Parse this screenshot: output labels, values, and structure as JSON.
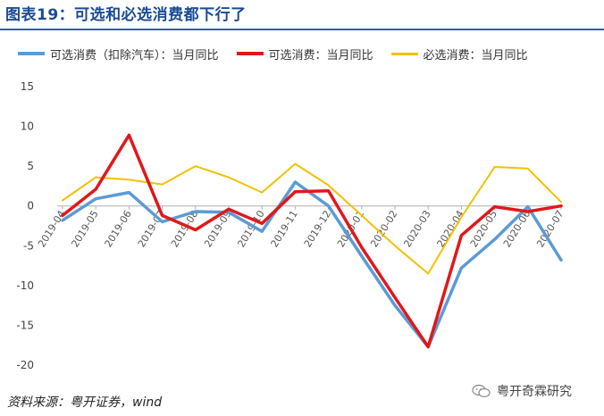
{
  "title": "图表19：可选和必选消费都下行了",
  "source": "资料来源：粤开证券，wind",
  "watermark": "粤开奇霖研究",
  "chart_data": {
    "type": "line",
    "categories": [
      "2019-04",
      "2019-05",
      "2019-06",
      "2019-07",
      "2019-08",
      "2019-09",
      "2019-10",
      "2019-11",
      "2019-12",
      "2020-01",
      "2020-02",
      "2020-03",
      "2020-04",
      "2020-05",
      "2020-06",
      "2020-07"
    ],
    "ylim": [
      -20,
      15
    ],
    "yticks": [
      -20,
      -15,
      -10,
      -5,
      0,
      5,
      10,
      15
    ],
    "grid": false,
    "legend_position": "top",
    "series": [
      {
        "name": "可选消费（扣除汽车）：当月同比",
        "color": "#5b9bd5",
        "width": 3.5,
        "values": [
          -1.8,
          0.9,
          1.7,
          -2.0,
          -0.7,
          -0.8,
          -3.2,
          3.0,
          0.0,
          -6.3,
          -12.5,
          -17.7,
          -7.8,
          -4.2,
          -0.1,
          -6.8
        ]
      },
      {
        "name": "可选消费：当月同比",
        "color": "#e0181b",
        "width": 3.5,
        "values": [
          -1.2,
          2.1,
          8.9,
          -1.2,
          -3.0,
          -0.4,
          -2.2,
          1.8,
          1.9,
          -5.2,
          -11.5,
          -17.7,
          -3.7,
          -0.1,
          -0.7,
          0.0
        ]
      },
      {
        "name": "必选消费：当月同比",
        "color": "#f2c100",
        "width": 2,
        "values": [
          0.7,
          3.6,
          3.3,
          2.7,
          5.0,
          3.6,
          1.7,
          5.3,
          2.6,
          -1.2,
          -5.0,
          -8.5,
          -1.4,
          4.9,
          4.7,
          0.5
        ]
      }
    ]
  }
}
